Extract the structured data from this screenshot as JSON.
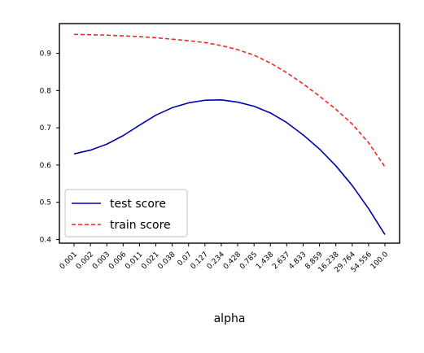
{
  "chart_data": {
    "type": "line",
    "title": "",
    "xlabel": "alpha",
    "ylabel": "",
    "x_scale": "log",
    "categories": [
      "0.001",
      "0.002",
      "0.003",
      "0.006",
      "0.011",
      "0.021",
      "0.038",
      "0.07",
      "0.127",
      "0.234",
      "0.428",
      "0.785",
      "1.438",
      "2.637",
      "4.833",
      "8.859",
      "16.238",
      "29.764",
      "54.556",
      "100.0"
    ],
    "ylim": [
      0.39,
      0.98
    ],
    "yticks": [
      "0.4",
      "0.5",
      "0.6",
      "0.7",
      "0.8",
      "0.9"
    ],
    "grid": false,
    "legend_position": "lower-left",
    "series": [
      {
        "name": "test score",
        "color": "#0000aa",
        "line_style": "solid",
        "values": [
          0.63,
          0.64,
          0.656,
          0.679,
          0.707,
          0.734,
          0.754,
          0.767,
          0.774,
          0.775,
          0.769,
          0.758,
          0.74,
          0.714,
          0.681,
          0.643,
          0.598,
          0.545,
          0.483,
          0.413
        ]
      },
      {
        "name": "train score",
        "color": "#ff2222",
        "line_style": "dashed",
        "values": [
          0.951,
          0.95,
          0.949,
          0.947,
          0.945,
          0.942,
          0.938,
          0.934,
          0.929,
          0.921,
          0.91,
          0.895,
          0.874,
          0.848,
          0.818,
          0.785,
          0.75,
          0.71,
          0.66,
          0.595
        ]
      }
    ]
  }
}
